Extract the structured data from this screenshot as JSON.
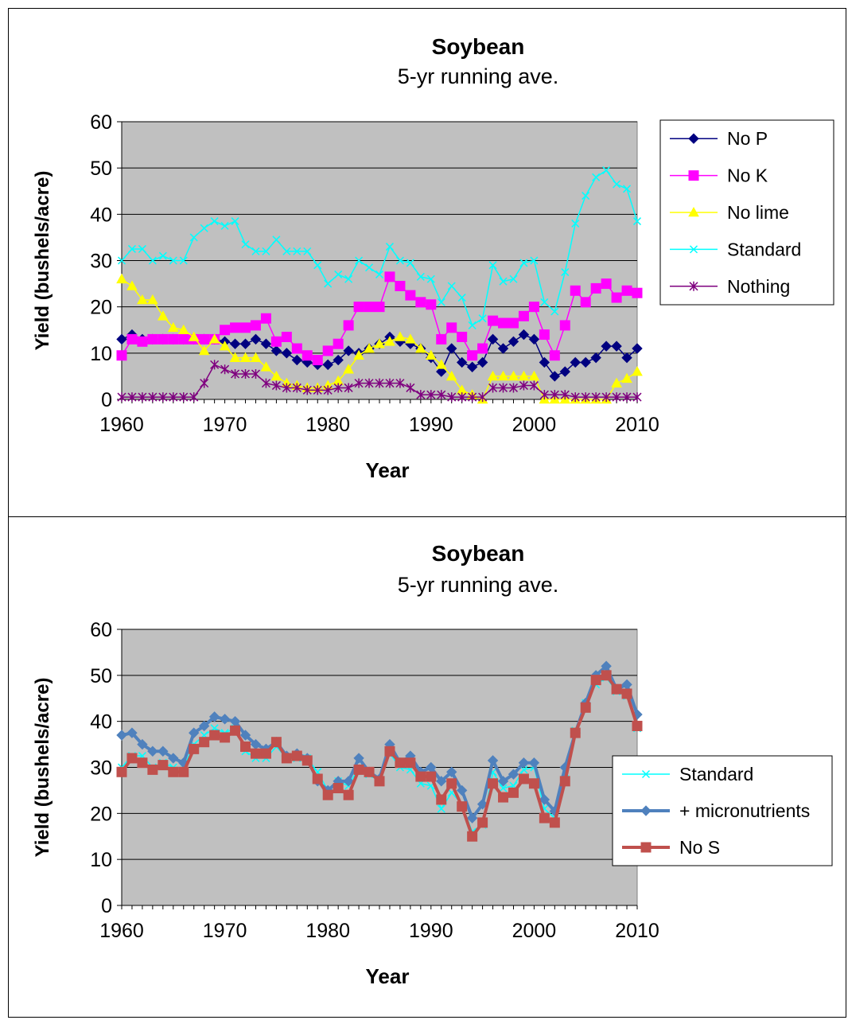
{
  "chart_data": [
    {
      "type": "line",
      "title": "Soybean",
      "subtitle": "5-yr running ave.",
      "xlabel": "Year",
      "ylabel": "Yield (bushels/acre)",
      "xlim": [
        1960,
        2010
      ],
      "ylim": [
        0,
        60
      ],
      "xticks": [
        "1960",
        "1970",
        "1980",
        "1990",
        "2000",
        "2010"
      ],
      "yticks": [
        "0",
        "10",
        "20",
        "30",
        "40",
        "50",
        "60"
      ],
      "grid": true,
      "plot_background": "#c0c0c0",
      "legend_position": "right",
      "x": [
        1960,
        1961,
        1962,
        1963,
        1964,
        1965,
        1966,
        1967,
        1968,
        1969,
        1970,
        1971,
        1972,
        1973,
        1974,
        1975,
        1976,
        1977,
        1978,
        1979,
        1980,
        1981,
        1982,
        1983,
        1984,
        1985,
        1986,
        1987,
        1988,
        1989,
        1990,
        1991,
        1992,
        1993,
        1994,
        1995,
        1996,
        1997,
        1998,
        1999,
        2000,
        2001,
        2002,
        2003,
        2004,
        2005,
        2006,
        2007,
        2008,
        2009,
        2010
      ],
      "series": [
        {
          "name": "No P",
          "color": "#000080",
          "marker": "diamond",
          "values": [
            13,
            14,
            13,
            13,
            13,
            13,
            13,
            13,
            13,
            13,
            12.5,
            12,
            12,
            13,
            12,
            10.5,
            10,
            8.5,
            8,
            7.5,
            7.5,
            8.5,
            10.5,
            10,
            11,
            12,
            13.5,
            12.5,
            12,
            11,
            9,
            6,
            11,
            8,
            7,
            8,
            13,
            11,
            12.5,
            14,
            13,
            8,
            5,
            6,
            8,
            8,
            9,
            11.5,
            11.5,
            9,
            11
          ]
        },
        {
          "name": "No K",
          "color": "#ff00ff",
          "marker": "square",
          "values": [
            9.5,
            13,
            12.5,
            13,
            13,
            13,
            13,
            13,
            13,
            13,
            15,
            15.5,
            15.5,
            16,
            17.5,
            12.5,
            13.5,
            11,
            9.5,
            8.5,
            10.5,
            12,
            16,
            20,
            20,
            20,
            26.5,
            24.5,
            22.5,
            21,
            20.5,
            13,
            15.5,
            13.5,
            9.5,
            11,
            17,
            16.5,
            16.5,
            18,
            20,
            14,
            9.5,
            16,
            23.5,
            21,
            24,
            25,
            22,
            23.5,
            23
          ]
        },
        {
          "name": "No lime",
          "color": "#ffff00",
          "marker": "triangle",
          "values": [
            26,
            24.5,
            21.5,
            21.5,
            18,
            15.5,
            15,
            13.5,
            10.5,
            13,
            11.5,
            9,
            9,
            9,
            7,
            5,
            3.5,
            3,
            2.5,
            2.5,
            3,
            4,
            6.5,
            9.5,
            11,
            12,
            12.5,
            13.5,
            13,
            11,
            9.5,
            7.5,
            5,
            2,
            1,
            0,
            5,
            5,
            5,
            5,
            5,
            0,
            0,
            0,
            0,
            0,
            0,
            0,
            3.5,
            4.5,
            6
          ]
        },
        {
          "name": "Standard",
          "color": "#00ffff",
          "marker": "x",
          "values": [
            30,
            32.5,
            32.5,
            30,
            31,
            30,
            30,
            35,
            37,
            38.5,
            37.5,
            38.5,
            33.5,
            32,
            32,
            34.5,
            32,
            32,
            32,
            29,
            25,
            27,
            26,
            30,
            28.5,
            27,
            33,
            30,
            29.5,
            26.5,
            26,
            21,
            24.5,
            22,
            16,
            17.5,
            29,
            25.5,
            26,
            29.5,
            30,
            21,
            19,
            27.5,
            38,
            44,
            48,
            49.5,
            46.5,
            45.5,
            38.5
          ]
        },
        {
          "name": "Nothing",
          "color": "#7f007f",
          "marker": "star",
          "values": [
            0.5,
            0.5,
            0.5,
            0.5,
            0.5,
            0.5,
            0.5,
            0.5,
            3.5,
            7.5,
            6.5,
            5.5,
            5.5,
            5.5,
            3.5,
            3,
            2.5,
            2.5,
            2,
            2,
            2,
            2.5,
            2.5,
            3.5,
            3.5,
            3.5,
            3.5,
            3.5,
            2.5,
            1,
            1,
            1,
            0.5,
            0.5,
            0.5,
            0.5,
            2.5,
            2.5,
            2.5,
            3,
            3,
            1,
            1,
            1,
            0.5,
            0.5,
            0.5,
            0.5,
            0.5,
            0.5,
            0.5
          ]
        }
      ]
    },
    {
      "type": "line",
      "title": "Soybean",
      "subtitle": "5-yr running ave.",
      "xlabel": "Year",
      "ylabel": "Yield (bushels/acre)",
      "xlim": [
        1960,
        2010
      ],
      "ylim": [
        0,
        60
      ],
      "xticks": [
        "1960",
        "1970",
        "1980",
        "1990",
        "2000",
        "2010"
      ],
      "yticks": [
        "0",
        "10",
        "20",
        "30",
        "40",
        "50",
        "60"
      ],
      "grid": true,
      "plot_background": "#c0c0c0",
      "legend_position": "right",
      "x": [
        1960,
        1961,
        1962,
        1963,
        1964,
        1965,
        1966,
        1967,
        1968,
        1969,
        1970,
        1971,
        1972,
        1973,
        1974,
        1975,
        1976,
        1977,
        1978,
        1979,
        1980,
        1981,
        1982,
        1983,
        1984,
        1985,
        1986,
        1987,
        1988,
        1989,
        1990,
        1991,
        1992,
        1993,
        1994,
        1995,
        1996,
        1997,
        1998,
        1999,
        2000,
        2001,
        2002,
        2003,
        2004,
        2005,
        2006,
        2007,
        2008,
        2009,
        2010
      ],
      "series": [
        {
          "name": "Standard",
          "color": "#00ffff",
          "marker": "x",
          "values": [
            30,
            32.5,
            32.5,
            30,
            31,
            30,
            30,
            35,
            37,
            38.5,
            37.5,
            38.5,
            33.5,
            32,
            32,
            34.5,
            32,
            32,
            32,
            29,
            25,
            27,
            26,
            30,
            28.5,
            27,
            33,
            30,
            29.5,
            26.5,
            26,
            21,
            24.5,
            22,
            16,
            17.5,
            29,
            25.5,
            26,
            29.5,
            30,
            21,
            19,
            27.5,
            38,
            44,
            48,
            49.5,
            46.5,
            45.5,
            38.5
          ]
        },
        {
          "name": "+ micronutrients",
          "color": "#4f81bd",
          "marker": "diamond",
          "values": [
            37,
            37.5,
            35,
            33.5,
            33.5,
            32,
            31,
            37.5,
            39,
            41,
            40.5,
            40,
            37,
            35,
            34,
            35.5,
            32.5,
            33,
            32,
            27,
            25,
            27,
            27,
            32,
            29,
            27.5,
            35,
            31,
            32.5,
            29,
            30,
            27,
            29,
            25,
            19,
            22,
            31.5,
            27,
            28.5,
            31,
            31,
            23,
            20.5,
            30,
            37.5,
            44,
            50,
            52,
            47,
            48,
            41.5
          ]
        },
        {
          "name": "No S",
          "color": "#c0504d",
          "marker": "square",
          "values": [
            29,
            32,
            31,
            29.5,
            30.5,
            29,
            29,
            34,
            35.5,
            37,
            36.5,
            38,
            34.5,
            33,
            33,
            35.5,
            32,
            32.5,
            31.5,
            27.5,
            24,
            25.5,
            24,
            29.5,
            29,
            27,
            33.5,
            31,
            31,
            28,
            28,
            23,
            26.5,
            21.5,
            15,
            18,
            26.5,
            23.5,
            24.5,
            27.5,
            26.5,
            19,
            18,
            27,
            37.5,
            43,
            49,
            50,
            47,
            46,
            39
          ]
        }
      ]
    }
  ]
}
